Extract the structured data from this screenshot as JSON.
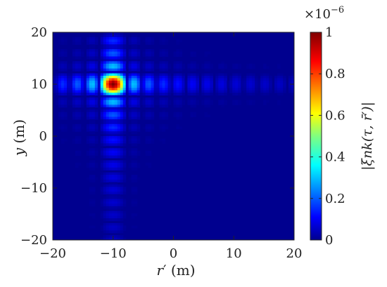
{
  "chart_data": {
    "type": "heatmap",
    "title": "",
    "xlabel": {
      "var": "r",
      "prime": "′",
      "unit": " (m)"
    },
    "ylabel": {
      "var": "y",
      "unit": " (m)"
    },
    "xlim": [
      -20,
      20
    ],
    "ylim": [
      -20,
      20
    ],
    "x_ticks": [
      "−20",
      "−10",
      "0",
      "10",
      "20"
    ],
    "x_tick_values": [
      -20,
      -10,
      0,
      10,
      20
    ],
    "y_ticks": [
      "−20",
      "−10",
      "0",
      "10",
      "20"
    ],
    "y_tick_values": [
      -20,
      -10,
      0,
      10,
      20
    ],
    "colorbar": {
      "colormap": "jet",
      "range": [
        0,
        1e-06
      ],
      "exponent_label": "×10",
      "exponent_power": "−6",
      "ticks": [
        "0",
        "0.2",
        "0.4",
        "0.6",
        "0.8",
        "1"
      ],
      "tick_values": [
        0,
        0.2,
        0.4,
        0.6,
        0.8,
        1.0
      ],
      "label": "|ξnk(τ, r̄′)|"
    },
    "peak": {
      "x": -10,
      "y": 10,
      "value": 1e-06
    },
    "background_value": 0,
    "sidelobe_pattern": "sinc-like ripples along x = -10 and y = 10"
  }
}
